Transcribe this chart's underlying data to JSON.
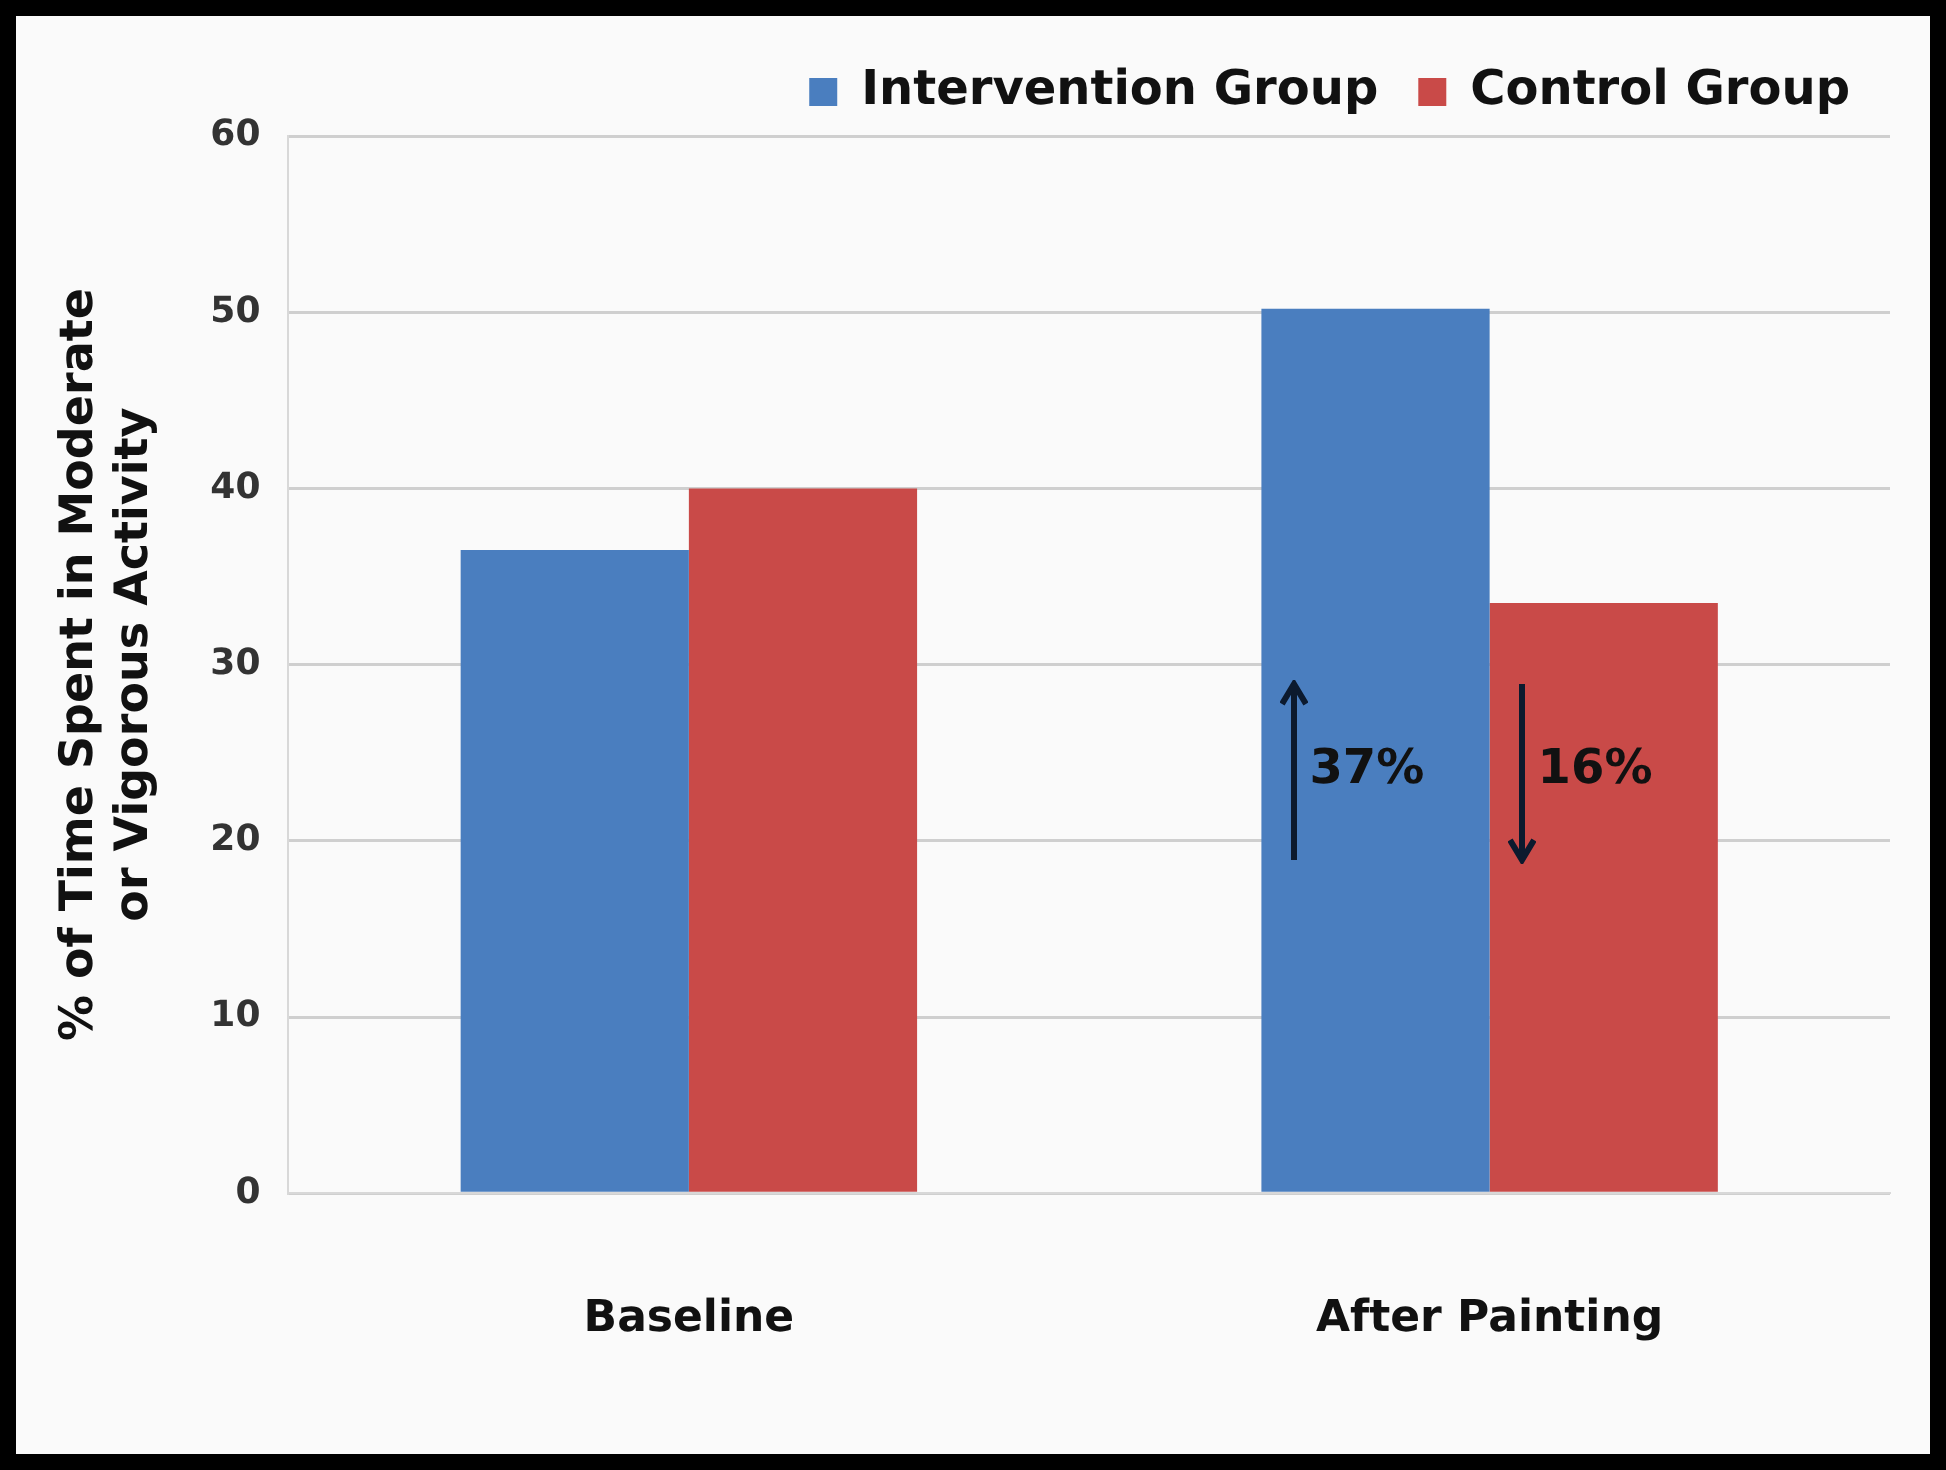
{
  "chart_data": {
    "type": "bar",
    "ylabel": "% of Time Spent in Moderate or Vigorous Activity",
    "categories": [
      "Baseline",
      "After Painting"
    ],
    "series": [
      {
        "name": "Intervention Group",
        "color": "#4a7ebf",
        "values": [
          36.5,
          50.2
        ]
      },
      {
        "name": "Control Group",
        "color": "#c94a48",
        "values": [
          40,
          33.5
        ]
      }
    ],
    "ylim": [
      0,
      60
    ],
    "yticks": [
      0,
      10,
      20,
      30,
      40,
      50,
      60
    ],
    "grid": "y",
    "legend": "top right",
    "annotations": [
      "37%",
      "16%"
    ]
  }
}
